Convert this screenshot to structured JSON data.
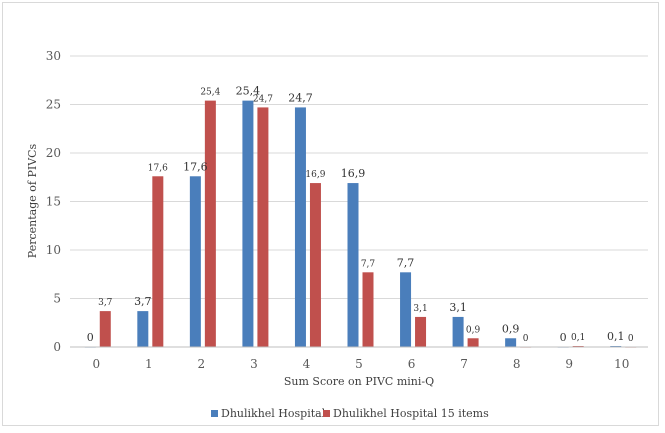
{
  "chart_data": {
    "type": "bar",
    "title": "",
    "xlabel": "Sum Score on PIVC mini-Q",
    "ylabel": "Percentage of PIVCs",
    "categories": [
      "0",
      "1",
      "2",
      "3",
      "4",
      "5",
      "6",
      "7",
      "8",
      "9",
      "10"
    ],
    "ylim": [
      0,
      30
    ],
    "yticks": [
      "0",
      "5",
      "10",
      "15",
      "20",
      "25",
      "30"
    ],
    "grid": true,
    "legend_position": "bottom",
    "series": [
      {
        "name": "Dhulikhel Hospital",
        "color": "#4a7ebb",
        "values": [
          0,
          3.7,
          17.6,
          25.4,
          24.7,
          16.9,
          7.7,
          3.1,
          0.9,
          0,
          0.1
        ],
        "labels": [
          "0",
          "3,7",
          "17,6",
          "25,4",
          "24,7",
          "16,9",
          "7,7",
          "3,1",
          "0,9",
          "0",
          "0,1"
        ]
      },
      {
        "name": "Dhulikhel Hospital 15 items",
        "color": "#c0504d",
        "values": [
          3.7,
          17.6,
          25.4,
          24.7,
          16.9,
          7.7,
          3.1,
          0.9,
          0,
          0.1,
          0
        ],
        "labels": [
          "3,7",
          "17,6",
          "25,4",
          "24,7",
          "16,9",
          "7,7",
          "3,1",
          "0,9",
          "0",
          "0,1",
          "0"
        ]
      }
    ]
  }
}
